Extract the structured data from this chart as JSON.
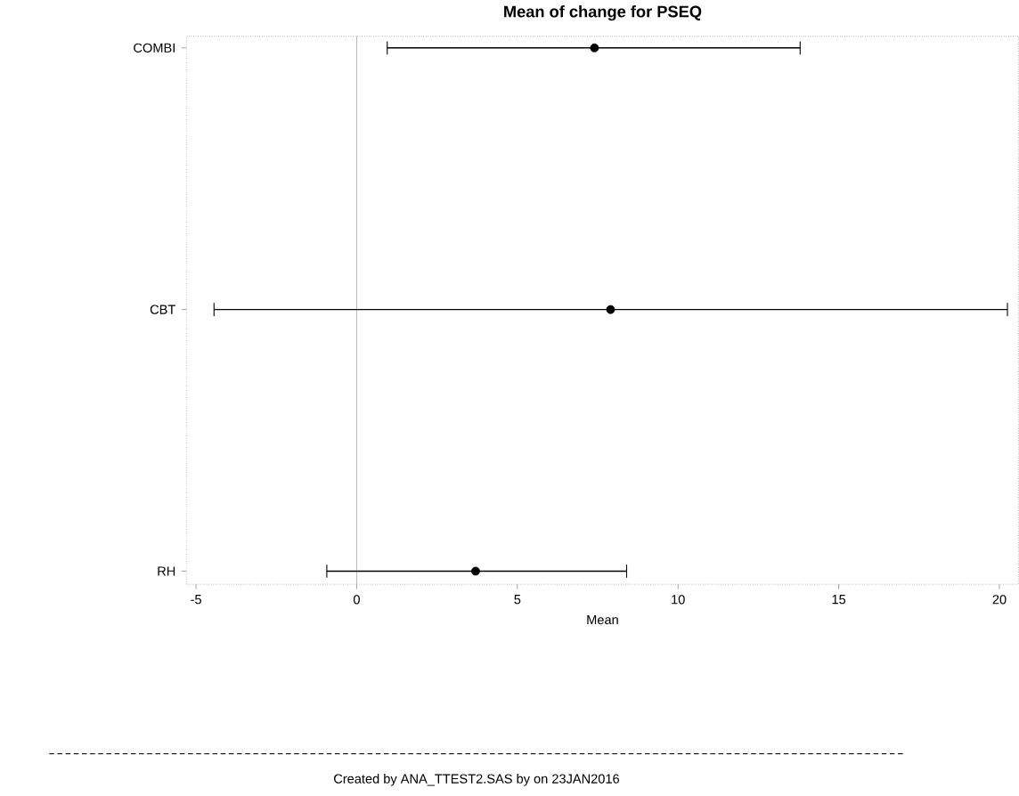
{
  "chart_data": {
    "type": "scatter",
    "title": "Mean of change for PSEQ",
    "xlabel": "Mean",
    "orientation": "horizontal",
    "categories": [
      "COMBI",
      "CBT",
      "RH"
    ],
    "values": [
      7.4,
      7.9,
      3.7
    ],
    "errors": [
      [
        0.95,
        13.8
      ],
      [
        -4.44,
        20.25
      ],
      [
        -0.93,
        8.4
      ]
    ],
    "color": "#000000",
    "marker": "circle",
    "xlim": [
      -5.3,
      20.6
    ],
    "xticks": [
      -5,
      0,
      5,
      10,
      15,
      20
    ],
    "ref_lines": [
      {
        "axis": "x",
        "value": 0,
        "color": "#999999"
      }
    ],
    "annotations": [
      "Created by ANA_TTEST2.SAS by  on 23JAN2016"
    ]
  }
}
